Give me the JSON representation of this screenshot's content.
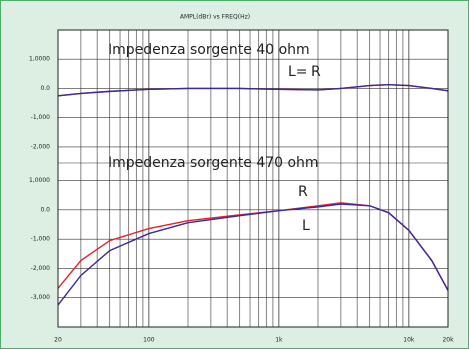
{
  "chart_data": [
    {
      "type": "line",
      "title": "AMPL(dBr)   vs   FREQ(Hz)",
      "x": [
        20,
        30,
        50,
        100,
        200,
        500,
        1000,
        2000,
        3000,
        5000,
        7000,
        10000,
        15000,
        20000
      ],
      "xlim": [
        20,
        20000
      ],
      "log_x": true,
      "ylim": [
        -2.55,
        2.0
      ],
      "yticks": [
        {
          "value": 1,
          "label": "1,0000"
        },
        {
          "value": 0,
          "label": "0.0"
        },
        {
          "value": -1,
          "label": "-1,000"
        },
        {
          "value": -2,
          "label": "-2,000"
        }
      ],
      "grid": true,
      "annotations": [
        "Impedenza sorgente 40 ohm",
        "L=",
        "R"
      ],
      "series": [
        {
          "name": "R",
          "color": "#e3222b",
          "values": [
            -0.25,
            -0.17,
            -0.1,
            -0.03,
            0,
            0,
            -0.03,
            -0.05,
            0,
            0.1,
            0.13,
            0.1,
            0.0,
            -0.08
          ]
        },
        {
          "name": "L",
          "color": "#3b2a9c",
          "values": [
            -0.25,
            -0.17,
            -0.1,
            -0.03,
            0,
            0,
            -0.03,
            -0.05,
            0,
            0.1,
            0.13,
            0.1,
            0.0,
            -0.08
          ]
        }
      ]
    },
    {
      "type": "line",
      "x": [
        20,
        30,
        50,
        100,
        200,
        500,
        1000,
        2000,
        3000,
        5000,
        7000,
        10000,
        15000,
        20000
      ],
      "xlim": [
        20,
        20000
      ],
      "log_x": true,
      "xticks": [
        20,
        100,
        {
          "value": 1000,
          "label": "1k"
        },
        {
          "value": 10000,
          "label": "10k"
        },
        {
          "value": 20000,
          "label": "20k"
        }
      ],
      "minor_xticks": [
        30,
        40,
        50,
        60,
        70,
        80,
        90,
        200,
        300,
        400,
        500,
        600,
        700,
        800,
        900,
        2000,
        3000,
        4000,
        5000,
        6000,
        7000,
        8000,
        9000
      ],
      "ylim": [
        -4.0,
        1.6
      ],
      "yticks": [
        {
          "value": 1,
          "label": "1,0000"
        },
        {
          "value": 0,
          "label": "0.0"
        },
        {
          "value": -1,
          "label": "-1,000"
        },
        {
          "value": -2,
          "label": "-2,000"
        },
        {
          "value": -3,
          "label": "-3,000"
        }
      ],
      "grid": true,
      "annotations": [
        "Impedenza sorgente 470 ohm",
        "R",
        "L"
      ],
      "series": [
        {
          "name": "R",
          "color": "#e3222b",
          "values": [
            -2.68,
            -1.73,
            -1.05,
            -0.64,
            -0.37,
            -0.17,
            -0.03,
            0.14,
            0.24,
            0.14,
            -0.1,
            -0.7,
            -1.73,
            -2.75
          ]
        },
        {
          "name": "L",
          "color": "#3b2a9c",
          "values": [
            -3.25,
            -2.24,
            -1.39,
            -0.81,
            -0.44,
            -0.2,
            -0.03,
            0.1,
            0.2,
            0.14,
            -0.1,
            -0.7,
            -1.73,
            -2.75
          ]
        }
      ]
    }
  ]
}
